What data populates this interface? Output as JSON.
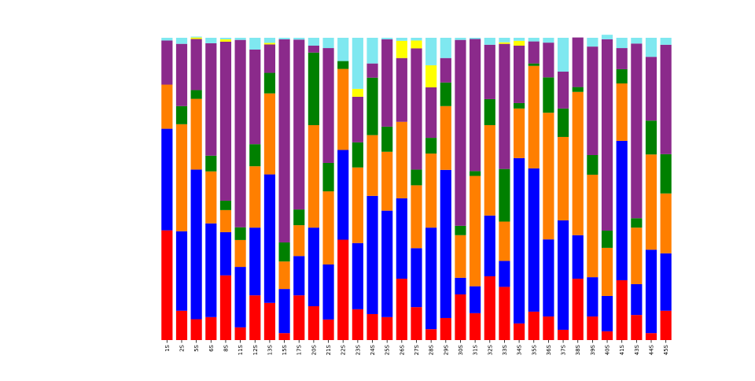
{
  "chart_data": {
    "type": "bar",
    "stacked": true,
    "normalized": true,
    "title": "",
    "xlabel": "",
    "ylabel": "",
    "ylim": [
      0,
      1
    ],
    "grid": false,
    "legend": "none",
    "categories": [
      "1S",
      "2S",
      "5S",
      "6S",
      "8S",
      "11S",
      "12S",
      "13S",
      "15S",
      "17S",
      "20S",
      "21S",
      "22S",
      "23S",
      "24S",
      "25S",
      "26S",
      "27S",
      "28S",
      "29S",
      "30S",
      "31S",
      "32S",
      "33S",
      "34S",
      "35S",
      "36S",
      "37S",
      "38S",
      "39S",
      "40S",
      "41S",
      "43S",
      "44S",
      "45S"
    ],
    "series": [
      {
        "color": "#ff0000",
        "values": [
          0.363,
          0.097,
          0.069,
          0.076,
          0.214,
          0.042,
          0.148,
          0.123,
          0.023,
          0.148,
          0.112,
          0.068,
          0.332,
          0.102,
          0.086,
          0.076,
          0.203,
          0.109,
          0.036,
          0.073,
          0.151,
          0.089,
          0.211,
          0.176,
          0.055,
          0.094,
          0.078,
          0.034,
          0.203,
          0.078,
          0.029,
          0.198,
          0.083,
          0.023,
          0.097
        ]
      },
      {
        "color": "#0000ff",
        "values": [
          0.336,
          0.263,
          0.495,
          0.31,
          0.143,
          0.2,
          0.224,
          0.425,
          0.146,
          0.13,
          0.26,
          0.182,
          0.297,
          0.219,
          0.391,
          0.352,
          0.266,
          0.195,
          0.336,
          0.49,
          0.055,
          0.089,
          0.201,
          0.086,
          0.547,
          0.474,
          0.255,
          0.362,
          0.144,
          0.13,
          0.117,
          0.461,
          0.102,
          0.276,
          0.19
        ]
      },
      {
        "color": "#ff7f00",
        "values": [
          0.146,
          0.354,
          0.234,
          0.172,
          0.073,
          0.089,
          0.203,
          0.268,
          0.091,
          0.102,
          0.339,
          0.242,
          0.268,
          0.25,
          0.201,
          0.195,
          0.253,
          0.208,
          0.245,
          0.211,
          0.141,
          0.365,
          0.299,
          0.13,
          0.164,
          0.339,
          0.419,
          0.276,
          0.474,
          0.339,
          0.159,
          0.19,
          0.187,
          0.315,
          0.198
        ]
      },
      {
        "color": "#008000",
        "values": [
          0.0,
          0.06,
          0.029,
          0.052,
          0.031,
          0.042,
          0.073,
          0.068,
          0.063,
          0.052,
          0.24,
          0.094,
          0.026,
          0.083,
          0.19,
          0.083,
          0.0,
          0.052,
          0.052,
          0.078,
          0.031,
          0.016,
          0.086,
          0.174,
          0.018,
          0.008,
          0.117,
          0.094,
          0.016,
          0.065,
          0.057,
          0.047,
          0.031,
          0.112,
          0.13
        ]
      },
      {
        "color": "#8b2a8b",
        "values": [
          0.146,
          0.206,
          0.169,
          0.372,
          0.526,
          0.62,
          0.313,
          0.094,
          0.672,
          0.562,
          0.023,
          0.38,
          0.0,
          0.151,
          0.047,
          0.289,
          0.211,
          0.401,
          0.167,
          0.081,
          0.615,
          0.437,
          0.18,
          0.414,
          0.19,
          0.073,
          0.115,
          0.122,
          0.164,
          0.359,
          0.633,
          0.07,
          0.578,
          0.211,
          0.362
        ]
      },
      {
        "color": "#ffff00",
        "values": [
          0.0,
          0.0,
          0.005,
          0.0,
          0.008,
          0.0,
          0.0,
          0.005,
          0.0,
          0.0,
          0.0,
          0.0,
          0.0,
          0.026,
          0.0,
          0.0,
          0.057,
          0.026,
          0.073,
          0.0,
          0.0,
          0.0,
          0.0,
          0.005,
          0.016,
          0.0,
          0.0,
          0.0,
          0.0,
          0.0,
          0.0,
          0.0,
          0.0,
          0.0,
          0.0
        ]
      },
      {
        "color": "#7fe8f0",
        "values": [
          0.009,
          0.02,
          0.003,
          0.018,
          0.005,
          0.007,
          0.039,
          0.017,
          0.005,
          0.006,
          0.026,
          0.034,
          0.077,
          0.169,
          0.085,
          0.005,
          0.01,
          0.009,
          0.091,
          0.067,
          0.007,
          0.004,
          0.023,
          0.015,
          0.01,
          0.012,
          0.016,
          0.112,
          0.0,
          0.029,
          0.015,
          0.034,
          0.019,
          0.063,
          0.023
        ]
      }
    ]
  }
}
